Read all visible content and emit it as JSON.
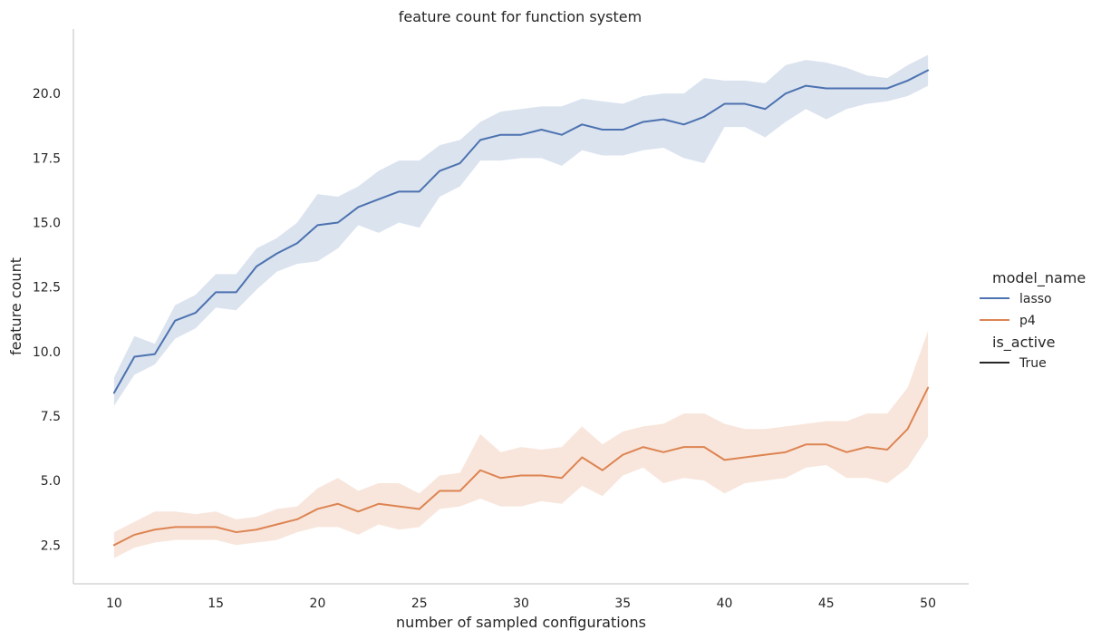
{
  "chart_data": {
    "type": "line",
    "title": "feature count for function system",
    "xlabel": "number of sampled configurations",
    "ylabel": "feature count",
    "xlim": [
      8,
      52
    ],
    "ylim": [
      1.0,
      22.5
    ],
    "x_ticks": [
      10,
      15,
      20,
      25,
      30,
      35,
      40,
      45,
      50
    ],
    "x_tick_labels": [
      "10",
      "15",
      "20",
      "25",
      "30",
      "35",
      "40",
      "45",
      "50"
    ],
    "y_ticks": [
      2.5,
      5.0,
      7.5,
      10.0,
      12.5,
      15.0,
      17.5,
      20.0
    ],
    "y_tick_labels": [
      "2.5",
      "5.0",
      "7.5",
      "10.0",
      "12.5",
      "15.0",
      "17.5",
      "20.0"
    ],
    "grid": false,
    "legend": {
      "placement": "right",
      "hue_title": "model_name",
      "style_title": "is_active",
      "style_entries": [
        "True"
      ],
      "style_color": "#262626"
    },
    "x": [
      10,
      11,
      12,
      13,
      14,
      15,
      16,
      17,
      18,
      19,
      20,
      21,
      22,
      23,
      24,
      25,
      26,
      27,
      28,
      29,
      30,
      31,
      32,
      33,
      34,
      35,
      36,
      37,
      38,
      39,
      40,
      41,
      42,
      43,
      44,
      45,
      46,
      47,
      48,
      49,
      50
    ],
    "series": [
      {
        "name": "lasso",
        "color": "#4c72b0",
        "values": [
          8.4,
          9.8,
          9.9,
          11.2,
          11.5,
          12.3,
          12.3,
          13.3,
          13.8,
          14.2,
          14.9,
          15.0,
          15.6,
          15.9,
          16.2,
          16.2,
          17.0,
          17.3,
          18.2,
          18.4,
          18.4,
          18.6,
          18.4,
          18.8,
          18.6,
          18.6,
          18.9,
          19.0,
          18.8,
          19.1,
          19.6,
          19.6,
          19.4,
          20.0,
          20.3,
          20.2,
          20.2,
          20.2,
          20.2,
          20.5,
          20.9
        ],
        "ci_low": [
          7.9,
          9.1,
          9.5,
          10.5,
          10.9,
          11.7,
          11.6,
          12.4,
          13.1,
          13.4,
          13.5,
          14.0,
          14.9,
          14.6,
          15.0,
          14.8,
          16.0,
          16.4,
          17.4,
          17.4,
          17.5,
          17.5,
          17.2,
          17.8,
          17.6,
          17.6,
          17.8,
          17.9,
          17.5,
          17.3,
          18.7,
          18.7,
          18.3,
          18.9,
          19.4,
          19.0,
          19.4,
          19.6,
          19.7,
          19.9,
          20.3
        ],
        "ci_high": [
          9.0,
          10.6,
          10.3,
          11.8,
          12.2,
          13.0,
          13.0,
          14.0,
          14.4,
          15.0,
          16.1,
          16.0,
          16.4,
          17.0,
          17.4,
          17.4,
          18.0,
          18.2,
          18.9,
          19.3,
          19.4,
          19.5,
          19.5,
          19.8,
          19.7,
          19.6,
          19.9,
          20.0,
          20.0,
          20.6,
          20.5,
          20.5,
          20.4,
          21.1,
          21.3,
          21.2,
          21.0,
          20.7,
          20.6,
          21.1,
          21.5
        ]
      },
      {
        "name": "p4",
        "color": "#dd8452",
        "values": [
          2.5,
          2.9,
          3.1,
          3.2,
          3.2,
          3.2,
          3.0,
          3.1,
          3.3,
          3.5,
          3.9,
          4.1,
          3.8,
          4.1,
          4.0,
          3.9,
          4.6,
          4.6,
          5.4,
          5.1,
          5.2,
          5.2,
          5.1,
          5.9,
          5.4,
          6.0,
          6.3,
          6.1,
          6.3,
          6.3,
          5.8,
          5.9,
          6.0,
          6.1,
          6.4,
          6.4,
          6.1,
          6.3,
          6.2,
          7.0,
          8.6
        ],
        "ci_low": [
          2.0,
          2.4,
          2.6,
          2.7,
          2.7,
          2.7,
          2.5,
          2.6,
          2.7,
          3.0,
          3.2,
          3.2,
          2.9,
          3.3,
          3.1,
          3.2,
          3.9,
          4.0,
          4.3,
          4.0,
          4.0,
          4.2,
          4.1,
          4.8,
          4.4,
          5.2,
          5.5,
          4.9,
          5.1,
          5.0,
          4.5,
          4.9,
          5.0,
          5.1,
          5.5,
          5.6,
          5.1,
          5.1,
          4.9,
          5.5,
          6.7
        ],
        "ci_high": [
          3.0,
          3.4,
          3.8,
          3.8,
          3.7,
          3.8,
          3.5,
          3.6,
          3.9,
          4.0,
          4.7,
          5.1,
          4.6,
          4.9,
          4.9,
          4.5,
          5.2,
          5.3,
          6.8,
          6.1,
          6.3,
          6.2,
          6.3,
          7.1,
          6.4,
          6.9,
          7.1,
          7.2,
          7.6,
          7.6,
          7.2,
          7.0,
          7.0,
          7.1,
          7.2,
          7.3,
          7.3,
          7.6,
          7.6,
          8.6,
          10.8
        ]
      }
    ]
  }
}
